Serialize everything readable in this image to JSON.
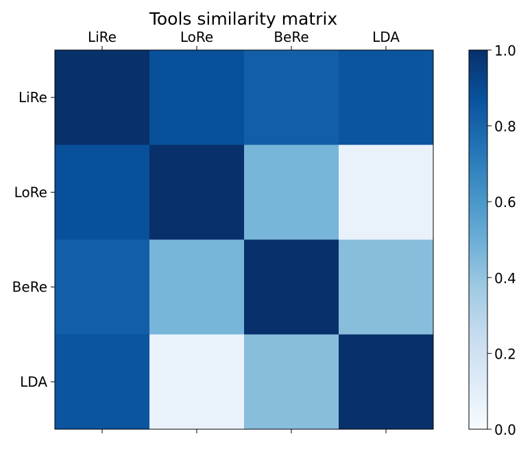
{
  "chart_data": {
    "type": "heatmap",
    "title": "Tools similarity matrix",
    "x_labels": [
      "LiRe",
      "LoRe",
      "BeRe",
      "LDA"
    ],
    "y_labels": [
      "LiRe",
      "LoRe",
      "BeRe",
      "LDA"
    ],
    "values": [
      [
        1.0,
        0.88,
        0.82,
        0.86
      ],
      [
        0.88,
        1.0,
        0.47,
        0.07
      ],
      [
        0.82,
        0.47,
        1.0,
        0.43
      ],
      [
        0.86,
        0.07,
        0.43,
        1.0
      ]
    ],
    "colormap": "Blues",
    "colorbar": {
      "range": [
        0.0,
        1.0
      ],
      "ticks": [
        0.0,
        0.2,
        0.4,
        0.6,
        0.8,
        1.0
      ],
      "tick_labels": [
        "0.0",
        "0.2",
        "0.4",
        "0.6",
        "0.8",
        "1.0"
      ]
    },
    "grid": false,
    "x_tick_position": "top"
  }
}
